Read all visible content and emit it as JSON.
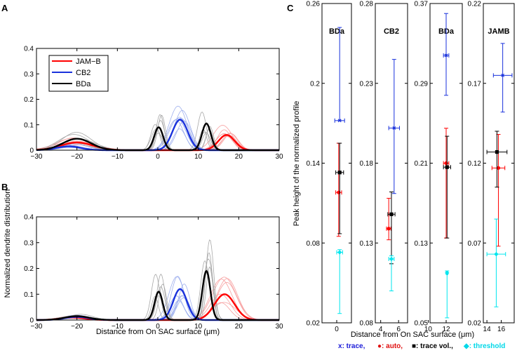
{
  "panels": {
    "a": "A",
    "b": "B",
    "c": "C"
  },
  "colors": {
    "jamb": "#ff0000",
    "cb2": "#1a32dc",
    "bda": "#000000",
    "jamb_light": "#f7a0a0",
    "cb2_light": "#9fb0ee",
    "bda_light": "#a8a8a8",
    "cyan": "#00e6ee",
    "trace_text": "#1a1ad8",
    "auto_text": "#e01010",
    "vol_text": "#000000",
    "thr_text": "#00d8e8"
  },
  "chart_data": [
    {
      "id": "A",
      "type": "line",
      "xlim": [
        -30,
        30
      ],
      "ylim": [
        0,
        0.4
      ],
      "xticks": [
        "−30",
        "−20",
        "−10",
        "0",
        "10",
        "20",
        "30"
      ],
      "yticks": [
        "0",
        "0.1",
        "0.2",
        "0.3",
        "0.4"
      ],
      "ylabel": "Normalized dendrite distribution",
      "legend": [
        "JAM−B",
        "CB2",
        "BDa"
      ],
      "series": [
        {
          "name": "JAM−B",
          "peaks": [
            {
              "x": -20,
              "h": 0.03,
              "w": 4
            },
            {
              "x": 17,
              "h": 0.06,
              "w": 2
            }
          ]
        },
        {
          "name": "CB2",
          "peaks": [
            {
              "x": 5.5,
              "h": 0.12,
              "w": 1.9
            },
            {
              "x": -22,
              "h": 0.015,
              "w": 3
            }
          ]
        },
        {
          "name": "BDa",
          "peaks": [
            {
              "x": -20,
              "h": 0.045,
              "w": 3.5
            },
            {
              "x": 0.2,
              "h": 0.09,
              "w": 1.1
            },
            {
              "x": 12,
              "h": 0.105,
              "w": 1.1
            }
          ]
        }
      ]
    },
    {
      "id": "B",
      "type": "line",
      "xlim": [
        -30,
        30
      ],
      "ylim": [
        0,
        0.4
      ],
      "xticks": [
        "−30",
        "−20",
        "−10",
        "0",
        "10",
        "20",
        "30"
      ],
      "yticks": [
        "0",
        "0.1",
        "0.2",
        "0.3",
        "0.4"
      ],
      "xlabel": "Distance from On SAC surface (μm)",
      "series": [
        {
          "name": "JAM−B",
          "peaks": [
            {
              "x": 16.5,
              "h": 0.1,
              "w": 2.5
            },
            {
              "x": -21,
              "h": 0.01,
              "w": 3
            }
          ]
        },
        {
          "name": "CB2",
          "peaks": [
            {
              "x": 5.5,
              "h": 0.12,
              "w": 1.7
            },
            {
              "x": -20,
              "h": 0.012,
              "w": 3
            }
          ]
        },
        {
          "name": "BDa",
          "peaks": [
            {
              "x": -20,
              "h": 0.015,
              "w": 3
            },
            {
              "x": 0.2,
              "h": 0.11,
              "w": 1.0
            },
            {
              "x": 12,
              "h": 0.19,
              "w": 1.0
            }
          ]
        }
      ]
    },
    {
      "id": "C",
      "type": "scatter",
      "ylabel": "Peak height of the normalized profile",
      "xlabel": "Distance from On SAC surface (μm)",
      "subpanels": [
        {
          "title": "BDa",
          "xlim": [
            -1.5,
            1.5
          ],
          "ylim": [
            0.02,
            0.26
          ],
          "yticks": [
            "0.02",
            "0.08",
            "0.14",
            "0.2",
            "0.26"
          ],
          "xticks": [
            "0"
          ],
          "points": [
            {
              "method": "trace",
              "x": 0.3,
              "y": 0.172,
              "xerr": 0.5,
              "ylo": 0.172,
              "yhi": 0.242
            },
            {
              "method": "auto",
              "x": 0.2,
              "y": 0.118,
              "xerr": 0.3,
              "ylo": 0.085,
              "yhi": 0.155
            },
            {
              "method": "trace vol.",
              "x": 0.3,
              "y": 0.133,
              "xerr": 0.4,
              "ylo": 0.087,
              "yhi": 0.155
            },
            {
              "method": "threshold",
              "x": 0.3,
              "y": 0.073,
              "xerr": 0.3,
              "ylo": 0.027,
              "yhi": 0.075
            }
          ]
        },
        {
          "title": "CB2",
          "xlim": [
            3.4,
            7.0
          ],
          "ylim": [
            0.08,
            0.28
          ],
          "yticks": [
            "0.08",
            "0.13",
            "0.18",
            "0.23",
            "0.28"
          ],
          "xticks": [
            "4",
            "6"
          ],
          "points": [
            {
              "method": "trace",
              "x": 5.5,
              "y": 0.202,
              "xerr": 0.6,
              "ylo": 0.161,
              "yhi": 0.245
            },
            {
              "method": "auto",
              "x": 4.9,
              "y": 0.139,
              "xerr": 0.25,
              "ylo": 0.132,
              "yhi": 0.158
            },
            {
              "method": "trace vol.",
              "x": 5.2,
              "y": 0.148,
              "xerr": 0.4,
              "ylo": 0.117,
              "yhi": 0.162
            },
            {
              "method": "threshold",
              "x": 5.2,
              "y": 0.12,
              "xerr": 0.3,
              "ylo": 0.1,
              "yhi": 0.122
            }
          ]
        },
        {
          "title": "BDa",
          "xlim": [
            10.2,
            13.8
          ],
          "ylim": [
            0.05,
            0.37
          ],
          "yticks": [
            "0.05",
            "0.13",
            "0.21",
            "0.29",
            "0.37"
          ],
          "xticks": [
            "10",
            "12"
          ],
          "points": [
            {
              "method": "trace",
              "x": 12.0,
              "y": 0.318,
              "xerr": 0.3,
              "ylo": 0.278,
              "yhi": 0.36
            },
            {
              "method": "auto",
              "x": 12.0,
              "y": 0.21,
              "xerr": 0.3,
              "ylo": 0.135,
              "yhi": 0.245
            },
            {
              "method": "trace vol.",
              "x": 12.1,
              "y": 0.206,
              "xerr": 0.4,
              "ylo": 0.135,
              "yhi": 0.237
            },
            {
              "method": "threshold",
              "x": 12.1,
              "y": 0.1,
              "xerr": 0.1,
              "ylo": 0.055,
              "yhi": 0.102
            }
          ]
        },
        {
          "title": "JAMB",
          "xlim": [
            13.5,
            17.8
          ],
          "ylim": [
            0.02,
            0.22
          ],
          "yticks": [
            "0.02",
            "0.07",
            "0.12",
            "0.17",
            "0.22"
          ],
          "xticks": [
            "14",
            "16"
          ],
          "points": [
            {
              "method": "trace",
              "x": 16.2,
              "y": 0.175,
              "xerr": 1.3,
              "ylo": 0.152,
              "yhi": 0.195
            },
            {
              "method": "auto",
              "x": 15.6,
              "y": 0.117,
              "xerr": 0.9,
              "ylo": 0.068,
              "yhi": 0.138
            },
            {
              "method": "trace vol.",
              "x": 15.4,
              "y": 0.127,
              "xerr": 1.4,
              "ylo": 0.105,
              "yhi": 0.14
            },
            {
              "method": "threshold",
              "x": 15.3,
              "y": 0.063,
              "xerr": 1.3,
              "ylo": 0.03,
              "yhi": 0.085
            }
          ]
        }
      ],
      "legend": [
        {
          "marker": "x",
          "label": ": trace,"
        },
        {
          "marker": "●",
          "label": ": auto,"
        },
        {
          "marker": "■",
          "label": ": trace vol.,"
        },
        {
          "marker": "◆",
          "label": ": threshold"
        }
      ]
    }
  ]
}
